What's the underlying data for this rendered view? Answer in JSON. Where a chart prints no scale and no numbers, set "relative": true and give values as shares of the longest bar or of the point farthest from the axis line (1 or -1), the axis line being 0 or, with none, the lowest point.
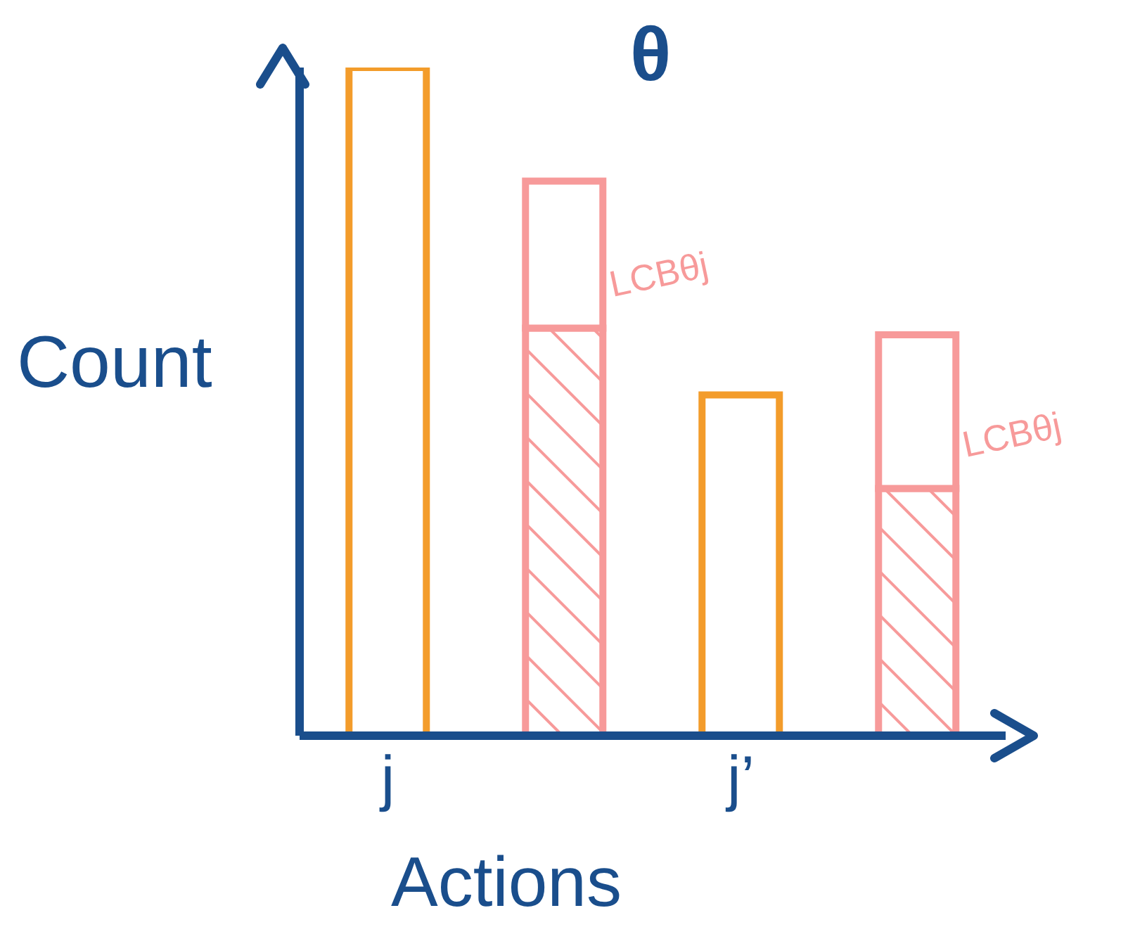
{
  "chart_data": {
    "type": "bar",
    "title": "θ",
    "ylabel": "Count",
    "xlabel": "Actions",
    "relative": true,
    "stacked": true,
    "categories": [
      "j",
      null,
      "j’",
      null
    ],
    "series": [
      {
        "color": "#f39c2b",
        "values": [
          1,
          null,
          0.51,
          null
        ]
      },
      {
        "color": "#f79a9a",
        "values": [
          null,
          0.61,
          null,
          0.37
        ]
      },
      {
        "color": "#f79a9a",
        "values": [
          null,
          0.22,
          null,
          0.23
        ]
      }
    ],
    "annotations": [
      "LCBθj",
      "LCBθj"
    ]
  }
}
